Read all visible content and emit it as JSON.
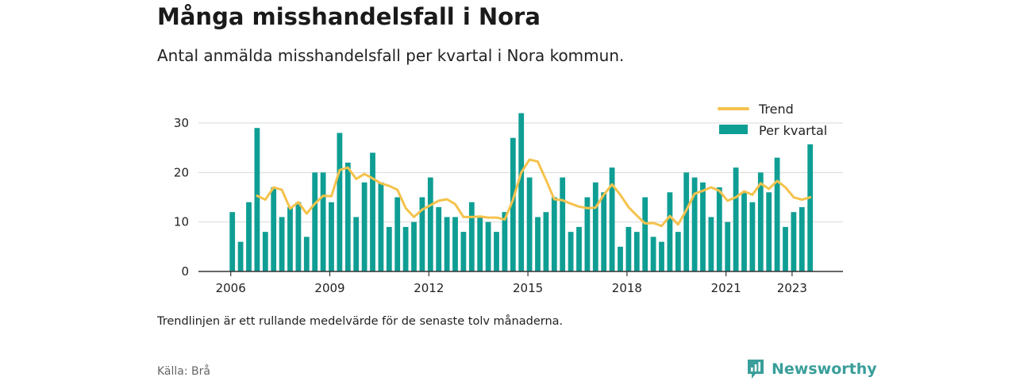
{
  "header": {
    "title": "Många misshandelsfall i Nora",
    "subtitle": "Antal anmälda misshandelsfall per kvartal i Nora kommun."
  },
  "footer": {
    "note": "Trendlinjen är ett rullande medelvärde för de senaste tolv månaderna.",
    "source": "Källa: Brå",
    "brand": "Newsworthy"
  },
  "colors": {
    "bars": "#0f9e94",
    "trend": "#f5c24c",
    "brand": "#3a9e9a"
  },
  "chart_data": {
    "type": "bar",
    "x_start": 2006,
    "xticks": [
      2006,
      2009,
      2012,
      2015,
      2018,
      2021,
      2023
    ],
    "ylim": [
      0,
      32
    ],
    "yticks": [
      0,
      10,
      20,
      30
    ],
    "grid": true,
    "legend_position": "top-right",
    "series": [
      {
        "name": "Per kvartal",
        "type": "bar",
        "values": [
          12,
          6,
          14,
          29,
          8,
          17,
          11,
          13,
          14,
          7,
          20,
          20,
          14,
          28,
          22,
          11,
          18,
          24,
          18,
          9,
          15,
          9,
          10,
          15,
          19,
          13,
          11,
          11,
          8,
          14,
          11,
          10,
          8,
          12,
          27,
          32,
          19,
          11,
          12,
          15,
          19,
          8,
          9,
          15,
          18,
          16,
          21,
          5,
          9,
          8,
          15,
          7,
          6,
          16,
          8,
          20,
          19,
          18,
          11,
          17,
          10,
          21,
          16,
          14,
          20,
          16,
          23,
          9,
          12,
          13,
          25.7
        ]
      },
      {
        "name": "Trend",
        "type": "line",
        "values": [
          null,
          null,
          null,
          15.3,
          14.5,
          17.0,
          16.5,
          12.7,
          14.0,
          11.7,
          13.7,
          15.3,
          15.2,
          20.5,
          21.0,
          18.7,
          19.7,
          18.8,
          17.8,
          17.3,
          16.5,
          12.8,
          11.0,
          12.5,
          13.4,
          14.3,
          14.6,
          13.6,
          11.0,
          11.0,
          11.1,
          10.9,
          10.9,
          10.5,
          14.5,
          20.0,
          22.6,
          22.2,
          18.5,
          14.6,
          14.4,
          13.7,
          13.1,
          12.8,
          12.9,
          15.5,
          17.6,
          15.5,
          13.0,
          11.3,
          9.7,
          9.8,
          9.2,
          11.2,
          9.5,
          12.4,
          15.7,
          16.3,
          17.0,
          16.3,
          14.3,
          15.0,
          16.2,
          15.5,
          17.8,
          16.7,
          18.3,
          17.0,
          15.0,
          14.5,
          15.0
        ]
      }
    ]
  }
}
